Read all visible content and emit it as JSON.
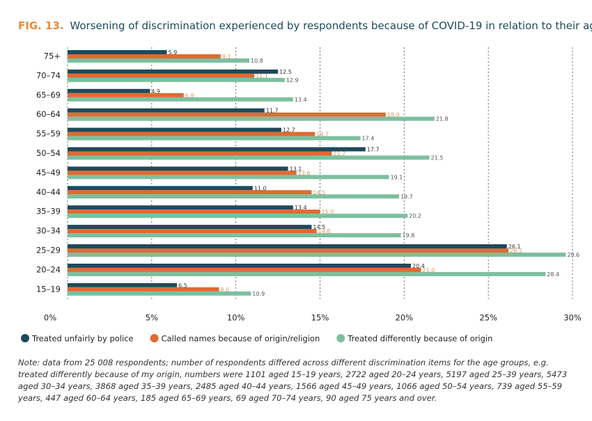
{
  "chart_data": {
    "type": "hbar",
    "figure_label": "FIG. 13.",
    "title": "Worsening of discrimination experienced by respondents because of COVID-19 in relation to their age",
    "categories": [
      "75+",
      "70–74",
      "65–69",
      "60–64",
      "55–59",
      "50–54",
      "45–49",
      "40–44",
      "35–39",
      "30–34",
      "25–29",
      "20–24",
      "15–19"
    ],
    "series": [
      {
        "name": "Treated unfairly by police",
        "color": "#1e4a5c",
        "label_color": "#333333",
        "values": [
          5.9,
          12.5,
          4.9,
          11.7,
          12.7,
          17.7,
          13.1,
          11.0,
          13.4,
          14.5,
          26.1,
          20.4,
          6.5
        ],
        "value_labels": [
          "5.9",
          "12.5",
          "4.9",
          "11.7",
          "12.7",
          "17.7",
          "13.1",
          "11.0",
          "13.4",
          "14.5",
          "26.1",
          "20.4",
          "6.5"
        ]
      },
      {
        "name": "Called names because of origin/religion",
        "color": "#dd6b32",
        "label_color": "#e4955f",
        "values": [
          9.1,
          11.1,
          6.9,
          18.9,
          14.7,
          15.7,
          13.6,
          14.5,
          15.0,
          14.8,
          26.2,
          21.0,
          9.0
        ],
        "value_labels": [
          "9.1",
          "11.1",
          "6.9",
          "18.9",
          "14.7",
          "15.7",
          "13.6",
          "14.5",
          "15.0",
          "14.8",
          "26.2",
          "21.0",
          "9.0"
        ]
      },
      {
        "name": "Treated differently because of origin",
        "color": "#7dbf9f",
        "label_color": "#555555",
        "values": [
          10.8,
          12.9,
          13.4,
          21.8,
          17.4,
          21.5,
          19.1,
          19.7,
          20.2,
          19.8,
          29.6,
          28.4,
          10.9
        ],
        "value_labels": [
          "10.8",
          "12.9",
          "13.4",
          "21.8",
          "17.4",
          "21.5",
          "19.1",
          "19.7",
          "20.2",
          "19.8",
          "29.6",
          "28.4",
          "10.9"
        ]
      }
    ],
    "xlim": [
      0,
      30
    ],
    "xticks": [
      {
        "value": 0,
        "label": "0%"
      },
      {
        "value": 5,
        "label": "5%"
      },
      {
        "value": 10,
        "label": "10%"
      },
      {
        "value": 15,
        "label": "15%"
      },
      {
        "value": 20,
        "label": "20%"
      },
      {
        "value": 25,
        "label": "25%"
      },
      {
        "value": 30,
        "label": "30%"
      }
    ],
    "grid": true,
    "note": "Note: data from 25 008 respondents; number of respondents differed across different discrimination items for the age groups, e.g. treated differently because of my origin, numbers were 1101 aged 15–19 years, 2722 aged 20–24 years, 5197 aged 25–39 years, 5473 aged 30–34 years, 3868 aged 35–39 years, 2485 aged 40–44 years, 1566 aged 45–49 years, 1066 aged 50–54 years, 739 aged 55–59 years, 447 aged 60–64 years, 185 aged 65–69 years, 69 aged 70–74 years, 90 aged 75 years and over."
  }
}
